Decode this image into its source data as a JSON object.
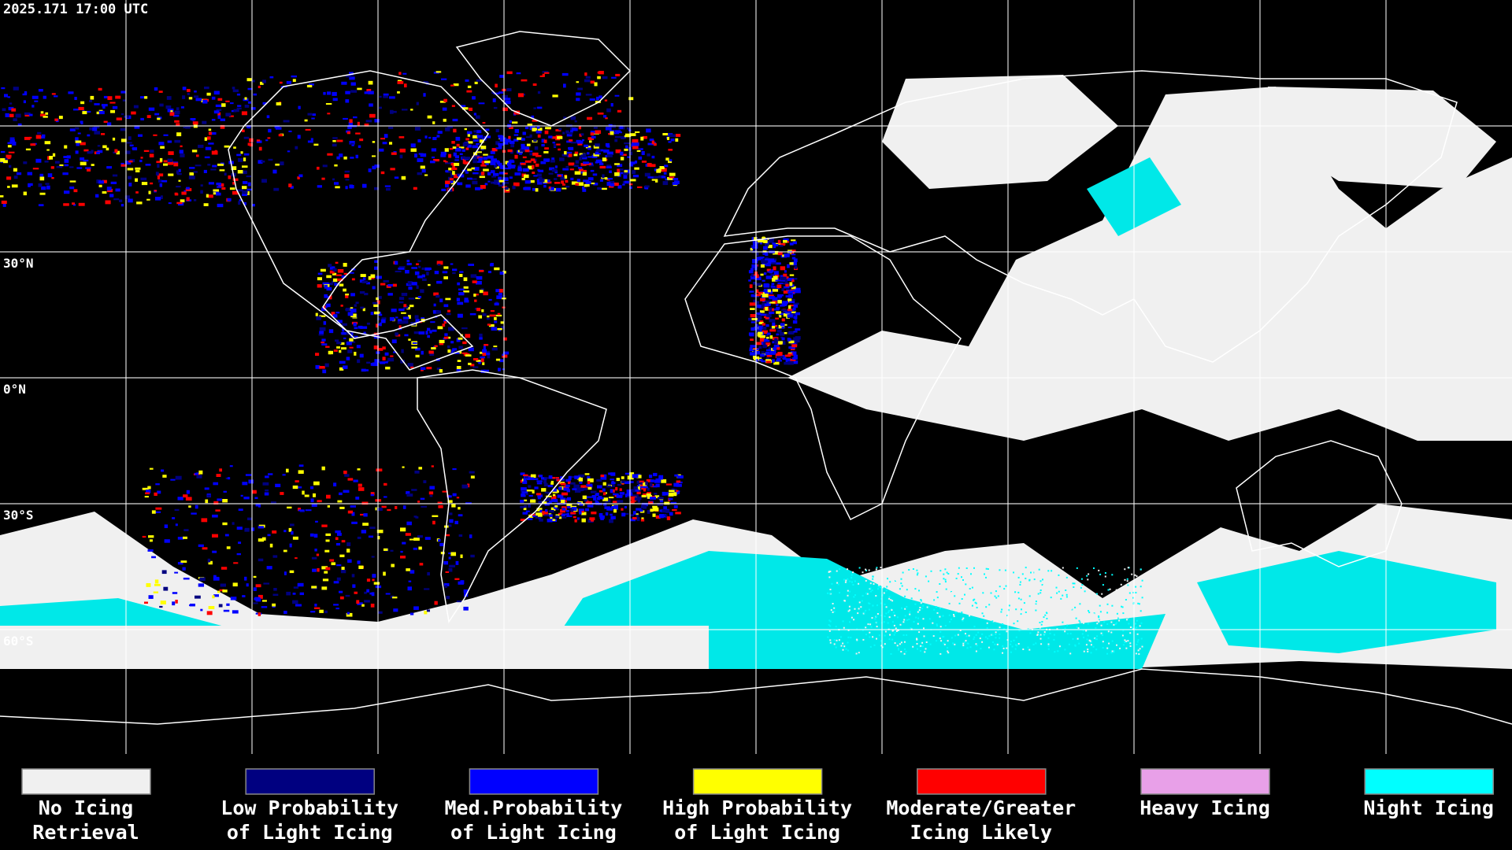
{
  "header": {
    "timestamp": "2025.171 17:00 UTC"
  },
  "latitude_labels": [
    "30°N",
    "0°N",
    "30°S",
    "60°S"
  ],
  "legend": [
    {
      "label": [
        "No Icing",
        "Retrieval"
      ],
      "color": "#f0f0f0"
    },
    {
      "label": [
        "Low Probability",
        "of Light Icing"
      ],
      "color": "#000080"
    },
    {
      "label": [
        "Med.Probability",
        "of Light Icing"
      ],
      "color": "#0000ff"
    },
    {
      "label": [
        "High Probability",
        "of Light Icing"
      ],
      "color": "#ffff00"
    },
    {
      "label": [
        "Moderate/Greater",
        "Icing Likely"
      ],
      "color": "#ff0000"
    },
    {
      "label": [
        "Heavy Icing"
      ],
      "color": "#e8a0e8"
    },
    {
      "label": [
        "Night Icing"
      ],
      "color": "#00ffff"
    }
  ]
}
